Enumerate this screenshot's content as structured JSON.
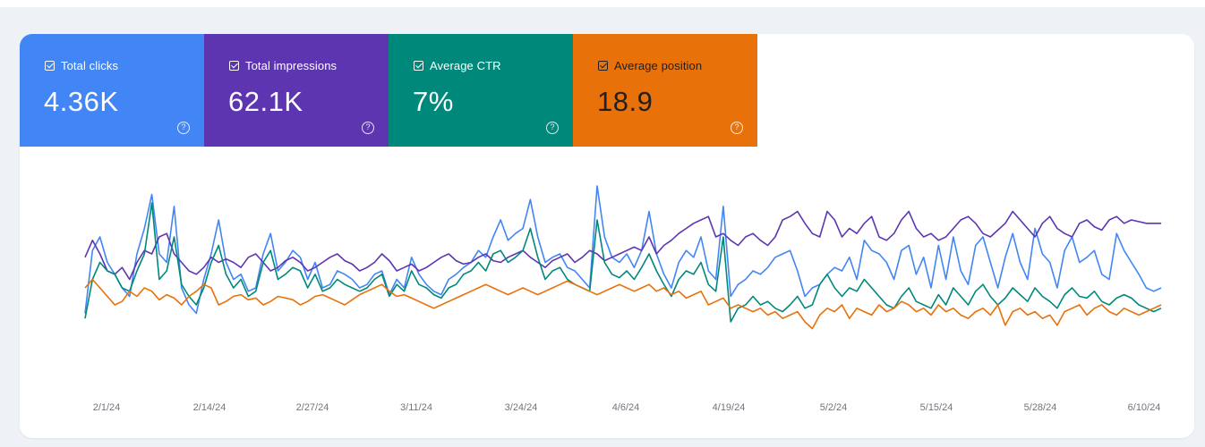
{
  "metrics": [
    {
      "label": "Total clicks",
      "value": "4.36K",
      "color": "#4285f4"
    },
    {
      "label": "Total impressions",
      "value": "62.1K",
      "color": "#5e35b1"
    },
    {
      "label": "Average CTR",
      "value": "7%",
      "color": "#00897b"
    },
    {
      "label": "Average position",
      "value": "18.9",
      "color": "#e8710a"
    }
  ],
  "help_glyph": "?",
  "chart_data": {
    "type": "line",
    "x_ticks": [
      "2/1/24",
      "2/14/24",
      "2/27/24",
      "3/11/24",
      "3/24/24",
      "4/6/24",
      "4/19/24",
      "5/2/24",
      "5/15/24",
      "5/28/24",
      "6/10/24"
    ],
    "x_start": "2/1/24",
    "x_end": "6/15/24",
    "legend": "none",
    "grid": false,
    "series": [
      {
        "name": "Total clicks",
        "color": "#4285f4",
        "values": [
          0.25,
          0.62,
          0.7,
          0.55,
          0.48,
          0.4,
          0.35,
          0.6,
          0.75,
          0.95,
          0.6,
          0.55,
          0.88,
          0.4,
          0.3,
          0.25,
          0.45,
          0.6,
          0.8,
          0.55,
          0.45,
          0.48,
          0.38,
          0.4,
          0.6,
          0.72,
          0.5,
          0.55,
          0.62,
          0.58,
          0.45,
          0.55,
          0.4,
          0.42,
          0.5,
          0.48,
          0.45,
          0.4,
          0.42,
          0.48,
          0.5,
          0.36,
          0.45,
          0.4,
          0.58,
          0.48,
          0.42,
          0.38,
          0.36,
          0.45,
          0.48,
          0.52,
          0.55,
          0.62,
          0.58,
          0.7,
          0.8,
          0.68,
          0.72,
          0.75,
          0.92,
          0.7,
          0.55,
          0.58,
          0.6,
          0.52,
          0.5,
          0.45,
          0.4,
          1.0,
          0.7,
          0.58,
          0.55,
          0.6,
          0.52,
          0.62,
          0.85,
          0.6,
          0.48,
          0.4,
          0.55,
          0.62,
          0.58,
          0.7,
          0.5,
          0.45,
          0.88,
          0.35,
          0.42,
          0.45,
          0.5,
          0.48,
          0.52,
          0.58,
          0.6,
          0.62,
          0.5,
          0.35,
          0.4,
          0.42,
          0.48,
          0.52,
          0.5,
          0.58,
          0.45,
          0.68,
          0.62,
          0.6,
          0.55,
          0.45,
          0.62,
          0.65,
          0.48,
          0.58,
          0.4,
          0.65,
          0.45,
          0.7,
          0.5,
          0.42,
          0.65,
          0.7,
          0.55,
          0.4,
          0.58,
          0.72,
          0.55,
          0.45,
          0.75,
          0.6,
          0.55,
          0.4,
          0.62,
          0.7,
          0.55,
          0.58,
          0.62,
          0.48,
          0.45,
          0.72,
          0.62,
          0.55,
          0.48,
          0.4,
          0.38,
          0.4
        ]
      },
      {
        "name": "Total impressions",
        "color": "#5e35b1",
        "values": [
          0.58,
          0.68,
          0.6,
          0.5,
          0.48,
          0.52,
          0.45,
          0.55,
          0.62,
          0.6,
          0.7,
          0.72,
          0.6,
          0.55,
          0.5,
          0.48,
          0.52,
          0.58,
          0.55,
          0.57,
          0.55,
          0.52,
          0.58,
          0.6,
          0.55,
          0.5,
          0.52,
          0.56,
          0.58,
          0.55,
          0.5,
          0.52,
          0.55,
          0.58,
          0.6,
          0.56,
          0.54,
          0.5,
          0.52,
          0.55,
          0.6,
          0.56,
          0.5,
          0.52,
          0.54,
          0.5,
          0.52,
          0.55,
          0.58,
          0.6,
          0.56,
          0.54,
          0.55,
          0.58,
          0.6,
          0.56,
          0.55,
          0.58,
          0.6,
          0.62,
          0.58,
          0.55,
          0.52,
          0.56,
          0.58,
          0.6,
          0.55,
          0.58,
          0.62,
          0.6,
          0.56,
          0.58,
          0.6,
          0.62,
          0.64,
          0.62,
          0.7,
          0.6,
          0.65,
          0.68,
          0.72,
          0.75,
          0.78,
          0.8,
          0.82,
          0.7,
          0.72,
          0.68,
          0.65,
          0.7,
          0.72,
          0.68,
          0.65,
          0.7,
          0.8,
          0.82,
          0.85,
          0.78,
          0.72,
          0.7,
          0.85,
          0.8,
          0.7,
          0.75,
          0.72,
          0.78,
          0.82,
          0.7,
          0.68,
          0.72,
          0.8,
          0.85,
          0.75,
          0.7,
          0.72,
          0.68,
          0.7,
          0.75,
          0.8,
          0.82,
          0.78,
          0.72,
          0.7,
          0.74,
          0.78,
          0.85,
          0.8,
          0.75,
          0.7,
          0.78,
          0.82,
          0.75,
          0.72,
          0.7,
          0.78,
          0.8,
          0.76,
          0.74,
          0.8,
          0.82,
          0.78,
          0.8,
          0.79,
          0.78,
          0.78,
          0.78
        ]
      },
      {
        "name": "Average CTR",
        "color": "#00897b",
        "values": [
          0.22,
          0.45,
          0.55,
          0.5,
          0.48,
          0.4,
          0.38,
          0.5,
          0.6,
          0.9,
          0.45,
          0.5,
          0.7,
          0.42,
          0.35,
          0.3,
          0.4,
          0.55,
          0.65,
          0.48,
          0.4,
          0.45,
          0.35,
          0.38,
          0.55,
          0.62,
          0.45,
          0.48,
          0.52,
          0.5,
          0.4,
          0.48,
          0.38,
          0.4,
          0.45,
          0.42,
          0.4,
          0.38,
          0.4,
          0.45,
          0.48,
          0.35,
          0.42,
          0.38,
          0.5,
          0.42,
          0.4,
          0.36,
          0.34,
          0.4,
          0.42,
          0.48,
          0.5,
          0.55,
          0.5,
          0.6,
          0.62,
          0.55,
          0.58,
          0.62,
          0.75,
          0.58,
          0.45,
          0.5,
          0.52,
          0.45,
          0.42,
          0.4,
          0.38,
          0.8,
          0.55,
          0.48,
          0.46,
          0.5,
          0.45,
          0.52,
          0.6,
          0.5,
          0.42,
          0.35,
          0.45,
          0.5,
          0.48,
          0.55,
          0.42,
          0.38,
          0.7,
          0.2,
          0.28,
          0.3,
          0.35,
          0.3,
          0.32,
          0.28,
          0.26,
          0.3,
          0.35,
          0.28,
          0.3,
          0.42,
          0.48,
          0.4,
          0.35,
          0.4,
          0.38,
          0.45,
          0.4,
          0.35,
          0.3,
          0.28,
          0.35,
          0.4,
          0.32,
          0.3,
          0.28,
          0.36,
          0.3,
          0.4,
          0.35,
          0.3,
          0.38,
          0.42,
          0.35,
          0.3,
          0.34,
          0.4,
          0.36,
          0.32,
          0.4,
          0.35,
          0.32,
          0.28,
          0.36,
          0.4,
          0.35,
          0.34,
          0.38,
          0.32,
          0.3,
          0.34,
          0.36,
          0.34,
          0.3,
          0.28,
          0.26,
          0.28
        ]
      },
      {
        "name": "Average position",
        "color": "#e8710a",
        "values": [
          0.4,
          0.45,
          0.4,
          0.35,
          0.3,
          0.32,
          0.38,
          0.35,
          0.4,
          0.38,
          0.33,
          0.36,
          0.34,
          0.3,
          0.35,
          0.38,
          0.42,
          0.4,
          0.3,
          0.32,
          0.35,
          0.36,
          0.33,
          0.34,
          0.3,
          0.32,
          0.35,
          0.34,
          0.33,
          0.3,
          0.32,
          0.35,
          0.36,
          0.34,
          0.32,
          0.3,
          0.33,
          0.36,
          0.38,
          0.4,
          0.42,
          0.38,
          0.35,
          0.36,
          0.34,
          0.32,
          0.3,
          0.28,
          0.3,
          0.32,
          0.34,
          0.36,
          0.38,
          0.4,
          0.42,
          0.4,
          0.38,
          0.36,
          0.38,
          0.4,
          0.38,
          0.36,
          0.38,
          0.4,
          0.42,
          0.44,
          0.42,
          0.4,
          0.38,
          0.36,
          0.38,
          0.4,
          0.42,
          0.4,
          0.38,
          0.4,
          0.42,
          0.38,
          0.4,
          0.36,
          0.38,
          0.34,
          0.36,
          0.38,
          0.3,
          0.32,
          0.34,
          0.28,
          0.3,
          0.28,
          0.26,
          0.28,
          0.24,
          0.26,
          0.22,
          0.24,
          0.26,
          0.2,
          0.16,
          0.24,
          0.28,
          0.26,
          0.3,
          0.22,
          0.28,
          0.26,
          0.24,
          0.3,
          0.26,
          0.28,
          0.32,
          0.3,
          0.26,
          0.28,
          0.24,
          0.3,
          0.26,
          0.28,
          0.24,
          0.22,
          0.26,
          0.28,
          0.24,
          0.3,
          0.18,
          0.26,
          0.28,
          0.24,
          0.26,
          0.22,
          0.24,
          0.18,
          0.26,
          0.28,
          0.3,
          0.24,
          0.28,
          0.3,
          0.26,
          0.24,
          0.28,
          0.26,
          0.24,
          0.26,
          0.28,
          0.3
        ]
      }
    ]
  }
}
